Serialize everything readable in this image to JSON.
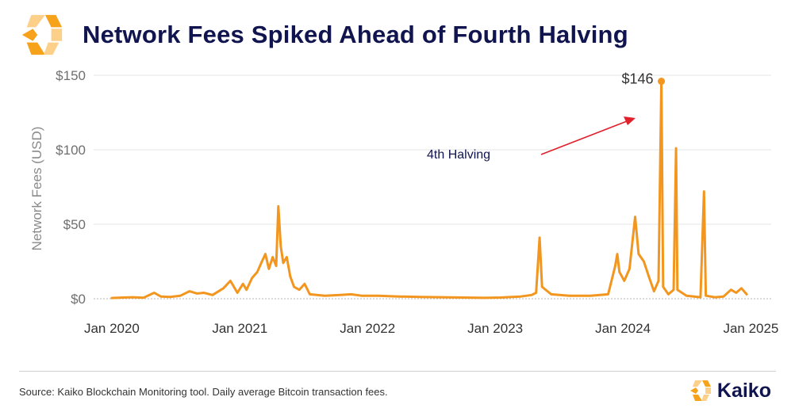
{
  "header": {
    "title": "Network Fees Spiked Ahead of Fourth Halving"
  },
  "footer": {
    "source": "Source: Kaiko Blockchain Monitoring tool. Daily average Bitcoin transaction fees.",
    "brand": "Kaiko"
  },
  "colors": {
    "series": "#f2961f",
    "title": "#10144f",
    "arrow": "#e0202a",
    "grid": "#e6e6e6",
    "logo_orange": "#f7a21b",
    "logo_light": "#fcd089"
  },
  "icons": {
    "logo": "kaiko-logo-icon",
    "arrow": "red-arrow-icon"
  },
  "chart_data": {
    "type": "line",
    "title": "Network Fees Spiked Ahead of Fourth Halving",
    "ylabel": "Network Fees (USD)",
    "xlabel": "",
    "ylim": [
      0,
      150
    ],
    "xlim": [
      "2019-11-10",
      "2025-02-28"
    ],
    "y_ticks": [
      0,
      50,
      100,
      150
    ],
    "y_tick_labels": [
      "$0",
      "$50",
      "$100",
      "$150"
    ],
    "x_ticks": [
      "2020-01-01",
      "2021-01-01",
      "2022-01-01",
      "2023-01-01",
      "2024-01-01",
      "2025-01-01"
    ],
    "x_tick_labels": [
      "Jan 2020",
      "Jan 2021",
      "Jan 2022",
      "Jan 2023",
      "Jan 2024",
      "Jan 2025"
    ],
    "grid": true,
    "legend": "none",
    "series": [
      {
        "name": "",
        "points": [
          [
            "2020-01-01",
            0.5
          ],
          [
            "2020-02-01",
            0.8
          ],
          [
            "2020-03-01",
            1.0
          ],
          [
            "2020-04-01",
            0.7
          ],
          [
            "2020-05-01",
            4
          ],
          [
            "2020-05-20",
            1.5
          ],
          [
            "2020-06-15",
            1.2
          ],
          [
            "2020-07-15",
            2
          ],
          [
            "2020-08-10",
            5
          ],
          [
            "2020-09-01",
            3.5
          ],
          [
            "2020-09-20",
            4
          ],
          [
            "2020-10-15",
            2.5
          ],
          [
            "2020-11-15",
            7
          ],
          [
            "2020-12-05",
            12
          ],
          [
            "2020-12-25",
            4
          ],
          [
            "2021-01-10",
            10
          ],
          [
            "2021-01-20",
            6
          ],
          [
            "2021-02-05",
            14
          ],
          [
            "2021-02-20",
            18
          ],
          [
            "2021-03-05",
            25
          ],
          [
            "2021-03-15",
            30
          ],
          [
            "2021-03-25",
            20
          ],
          [
            "2021-04-05",
            28
          ],
          [
            "2021-04-15",
            22
          ],
          [
            "2021-04-21",
            62
          ],
          [
            "2021-04-28",
            35
          ],
          [
            "2021-05-05",
            24
          ],
          [
            "2021-05-15",
            28
          ],
          [
            "2021-05-25",
            15
          ],
          [
            "2021-06-05",
            8
          ],
          [
            "2021-06-20",
            6
          ],
          [
            "2021-07-05",
            10
          ],
          [
            "2021-07-20",
            3
          ],
          [
            "2021-09-01",
            2
          ],
          [
            "2021-10-15",
            2.5
          ],
          [
            "2021-11-15",
            3
          ],
          [
            "2021-12-15",
            2
          ],
          [
            "2022-02-01",
            2
          ],
          [
            "2022-04-01",
            1.5
          ],
          [
            "2022-06-01",
            1.2
          ],
          [
            "2022-08-01",
            1
          ],
          [
            "2022-10-01",
            0.8
          ],
          [
            "2022-12-01",
            0.6
          ],
          [
            "2023-01-15",
            0.8
          ],
          [
            "2023-03-15",
            1.5
          ],
          [
            "2023-04-15",
            2.5
          ],
          [
            "2023-04-28",
            4
          ],
          [
            "2023-05-08",
            41
          ],
          [
            "2023-05-15",
            8
          ],
          [
            "2023-06-10",
            3
          ],
          [
            "2023-08-01",
            2
          ],
          [
            "2023-10-01",
            2
          ],
          [
            "2023-11-20",
            3
          ],
          [
            "2023-12-10",
            22
          ],
          [
            "2023-12-16",
            30
          ],
          [
            "2023-12-22",
            18
          ],
          [
            "2024-01-05",
            12
          ],
          [
            "2024-01-20",
            20
          ],
          [
            "2024-02-05",
            55
          ],
          [
            "2024-02-15",
            30
          ],
          [
            "2024-03-01",
            25
          ],
          [
            "2024-03-15",
            15
          ],
          [
            "2024-03-30",
            5
          ],
          [
            "2024-04-12",
            12
          ],
          [
            "2024-04-20",
            146
          ],
          [
            "2024-04-25",
            8
          ],
          [
            "2024-05-10",
            3
          ],
          [
            "2024-05-25",
            6
          ],
          [
            "2024-06-01",
            101
          ],
          [
            "2024-06-05",
            6
          ],
          [
            "2024-07-01",
            2
          ],
          [
            "2024-08-10",
            1
          ],
          [
            "2024-08-20",
            72
          ],
          [
            "2024-08-25",
            2
          ],
          [
            "2024-09-20",
            1
          ],
          [
            "2024-10-15",
            1.5
          ],
          [
            "2024-11-05",
            6
          ],
          [
            "2024-11-20",
            4
          ],
          [
            "2024-12-05",
            7
          ],
          [
            "2024-12-20",
            3
          ]
        ]
      }
    ],
    "annotations": [
      {
        "text": "$146",
        "x": "2024-04-20",
        "y": 146
      },
      {
        "text": "4th Halving"
      }
    ]
  }
}
